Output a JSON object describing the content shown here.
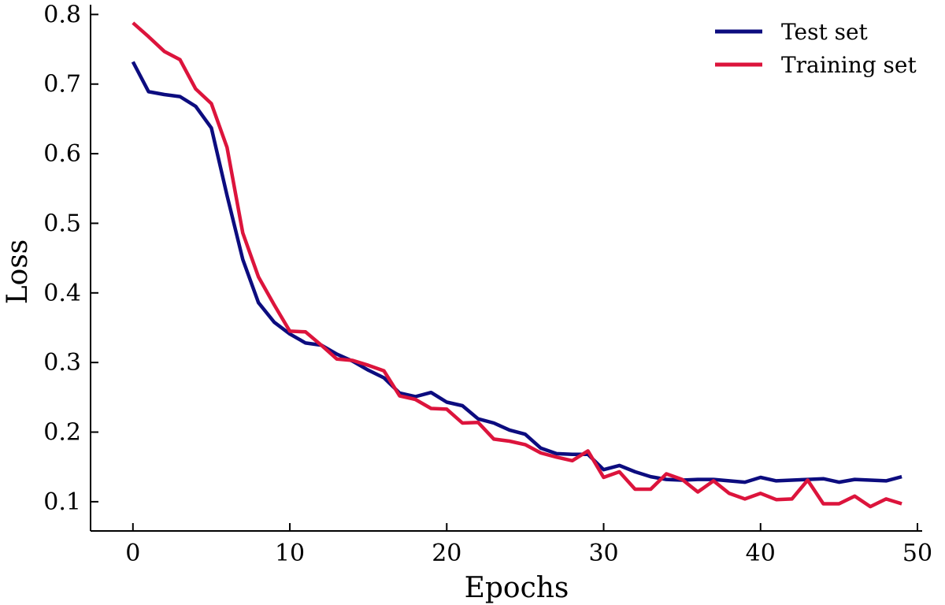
{
  "chart_data": {
    "type": "line",
    "title": "",
    "xlabel": "Epochs",
    "ylabel": "Loss",
    "xlim": [
      -2.7,
      50.3
    ],
    "ylim": [
      0.058,
      0.814
    ],
    "xticks": [
      0,
      10,
      20,
      30,
      40,
      50
    ],
    "yticks": [
      0.1,
      0.2,
      0.3,
      0.4,
      0.5,
      0.6,
      0.7,
      0.8
    ],
    "xtick_labels": [
      "0",
      "10",
      "20",
      "30",
      "40",
      "50"
    ],
    "ytick_labels": [
      "0.1",
      "0.2",
      "0.3",
      "0.4",
      "0.5",
      "0.6",
      "0.7",
      "0.8"
    ],
    "grid": false,
    "legend_position": "top-right",
    "x": [
      0,
      1,
      2,
      3,
      4,
      5,
      6,
      7,
      8,
      9,
      10,
      11,
      12,
      13,
      14,
      15,
      16,
      17,
      18,
      19,
      20,
      21,
      22,
      23,
      24,
      25,
      26,
      27,
      28,
      29,
      30,
      31,
      32,
      33,
      34,
      35,
      36,
      37,
      38,
      39,
      40,
      41,
      42,
      43,
      44,
      45,
      46,
      47,
      48,
      49
    ],
    "series": [
      {
        "name": "Test set",
        "color": "#0c0c7f",
        "values": [
          0.732,
          0.689,
          0.685,
          0.682,
          0.668,
          0.637,
          0.54,
          0.448,
          0.386,
          0.358,
          0.341,
          0.328,
          0.325,
          0.312,
          0.302,
          0.289,
          0.278,
          0.256,
          0.251,
          0.257,
          0.243,
          0.238,
          0.219,
          0.213,
          0.203,
          0.197,
          0.177,
          0.169,
          0.168,
          0.168,
          0.146,
          0.152,
          0.143,
          0.136,
          0.132,
          0.131,
          0.132,
          0.132,
          0.13,
          0.128,
          0.135,
          0.13,
          0.131,
          0.132,
          0.133,
          0.128,
          0.132,
          0.131,
          0.13,
          0.136
        ]
      },
      {
        "name": "Training set",
        "color": "#dc143c",
        "values": [
          0.788,
          0.768,
          0.747,
          0.735,
          0.693,
          0.672,
          0.609,
          0.486,
          0.423,
          0.383,
          0.345,
          0.344,
          0.325,
          0.305,
          0.303,
          0.296,
          0.288,
          0.252,
          0.247,
          0.234,
          0.233,
          0.213,
          0.214,
          0.19,
          0.187,
          0.182,
          0.17,
          0.164,
          0.159,
          0.173,
          0.135,
          0.143,
          0.118,
          0.118,
          0.14,
          0.132,
          0.114,
          0.13,
          0.112,
          0.104,
          0.112,
          0.103,
          0.104,
          0.131,
          0.097,
          0.097,
          0.108,
          0.093,
          0.104,
          0.097
        ]
      }
    ]
  }
}
